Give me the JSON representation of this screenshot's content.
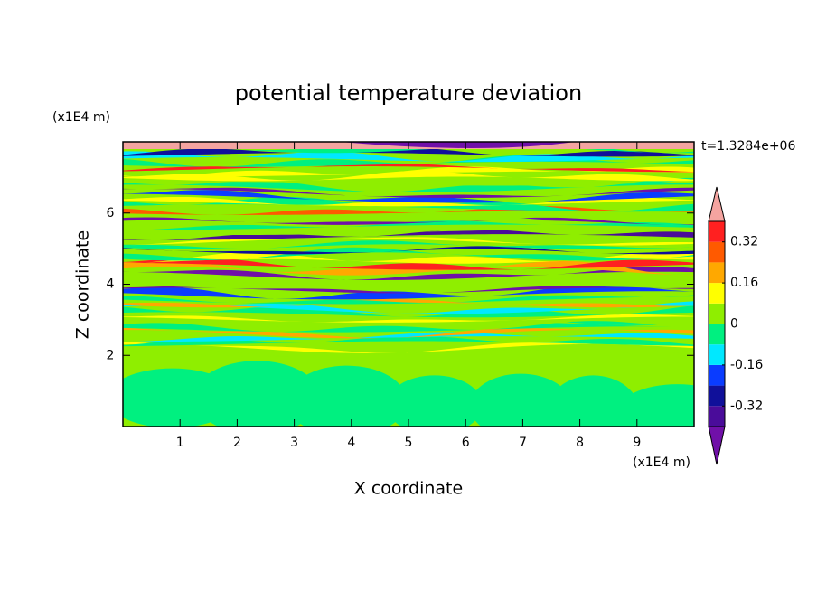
{
  "chart_data": {
    "type": "contour",
    "title": "potential temperature deviation",
    "x_label": "X coordinate",
    "y_label": "Z coordinate",
    "x_unit": "(x1E4 m)",
    "y_unit": "(x1E4 m)",
    "annotation": "t=1.3284e+06",
    "xlim": [
      0,
      10
    ],
    "ylim": [
      0,
      8
    ],
    "xticks": [
      1,
      2,
      3,
      4,
      5,
      6,
      7,
      8,
      9
    ],
    "yticks": [
      2,
      4,
      6
    ],
    "colorbar": {
      "levels": [
        -0.4,
        -0.32,
        -0.24,
        -0.16,
        -0.08,
        0,
        0.08,
        0.16,
        0.24,
        0.32,
        0.4
      ],
      "colors": [
        "#4a0c9a",
        "#10109a",
        "#0a3cff",
        "#00e8ff",
        "#00f080",
        "#8fee00",
        "#ffff00",
        "#ffa800",
        "#ff5a00",
        "#ff2020"
      ],
      "under_color": "#7010a8",
      "over_color": "#f4a4a0",
      "ticks": [
        -0.32,
        -0.16,
        0,
        0.16,
        0.32
      ]
    }
  }
}
